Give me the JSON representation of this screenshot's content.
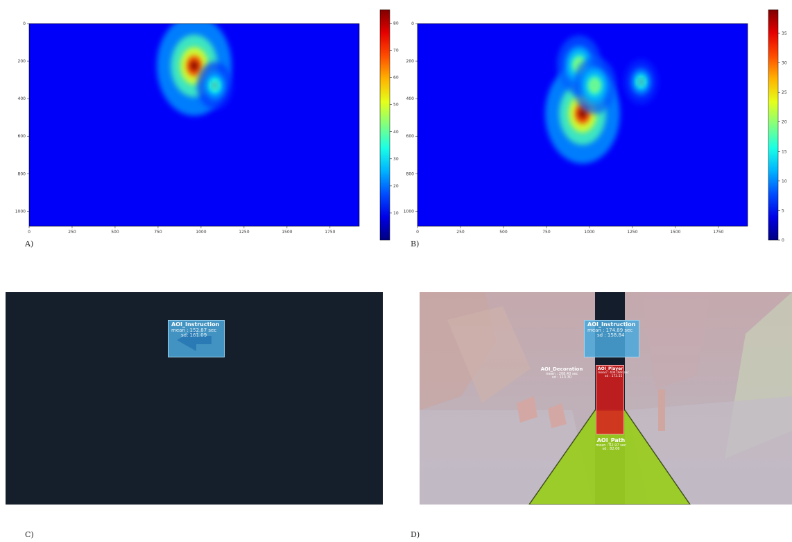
{
  "figure": {
    "labels": [
      "A)",
      "B)",
      "C)",
      "D)"
    ]
  },
  "chart_data": [
    {
      "type": "heatmap",
      "panel": "A)",
      "x_ticks": [
        0,
        250,
        500,
        750,
        1000,
        1250,
        1500,
        1750
      ],
      "y_ticks": [
        0,
        200,
        400,
        600,
        800,
        1000
      ],
      "xlim": [
        0,
        1920
      ],
      "ylim": [
        0,
        1080
      ],
      "colorbar_ticks": [
        10,
        20,
        30,
        40,
        50,
        60,
        70,
        80
      ],
      "colorbar_range": [
        0,
        85
      ],
      "colormap": "jet",
      "hotspots": [
        {
          "x": 960,
          "y": 225,
          "value": 85
        },
        {
          "x": 1080,
          "y": 330,
          "value": 18
        }
      ]
    },
    {
      "type": "heatmap",
      "panel": "B)",
      "x_ticks": [
        0,
        250,
        500,
        750,
        1000,
        1250,
        1500,
        1750
      ],
      "y_ticks": [
        0,
        200,
        400,
        600,
        800,
        1000
      ],
      "xlim": [
        0,
        1920
      ],
      "ylim": [
        0,
        1080
      ],
      "colorbar_ticks": [
        0,
        5,
        10,
        15,
        20,
        25,
        30,
        35
      ],
      "colorbar_range": [
        0,
        39
      ],
      "colormap": "jet",
      "hotspots": [
        {
          "x": 960,
          "y": 480,
          "value": 39
        },
        {
          "x": 940,
          "y": 220,
          "value": 15
        },
        {
          "x": 1030,
          "y": 330,
          "value": 14
        },
        {
          "x": 1300,
          "y": 310,
          "value": 7
        }
      ]
    }
  ],
  "aoi_panels": {
    "C": {
      "instruction": {
        "name": "AOI_Instruction",
        "mean": "mean : 152.87 sec",
        "sd": "sd: 161.09"
      }
    },
    "D": {
      "instruction": {
        "name": "AOI_Instruction",
        "mean": "mean : 174.89 sec",
        "sd": "sd : 158.84"
      },
      "decoration": {
        "name": "AOI_Decoration",
        "mean": "mean : 208.40 sec",
        "sd": "sd : 113.30"
      },
      "player": {
        "name": "AOI_Player",
        "mean": "mean : 404.088 sec",
        "sd": "sd : 173.55"
      },
      "path": {
        "name": "AOI_Path",
        "mean": "mean : 62.97 sec",
        "sd": "sd : 82.06"
      }
    }
  },
  "colors": {
    "heat_background": "#0a1fd0",
    "aoi_dark_background": "#151e2b",
    "aoi_instruction": "#4aa8dc",
    "aoi_player": "#d91f1f",
    "aoi_path": "#9acd22",
    "aoi_scene_background": "#b9b3bd"
  }
}
